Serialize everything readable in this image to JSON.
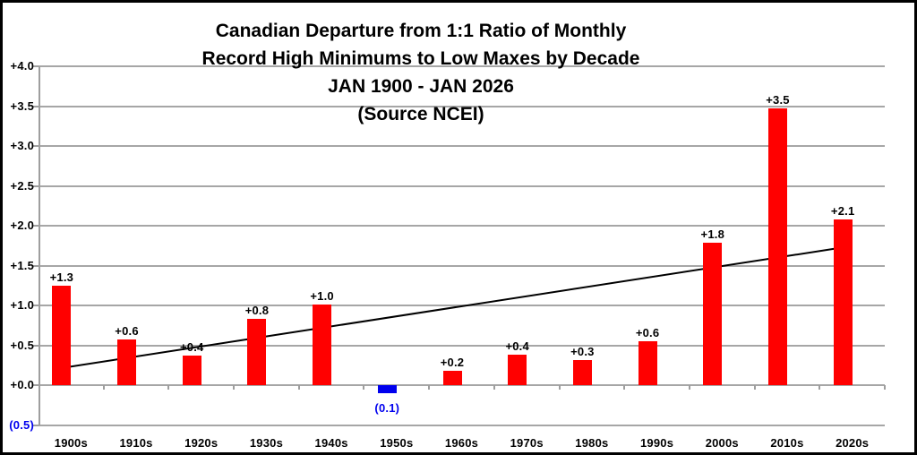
{
  "chart_data": {
    "type": "bar",
    "title_lines": [
      "Canadian Departure from 1:1 Ratio of Monthly",
      "Record High Minimums to Low Maxes by Decade",
      "JAN 1900 - JAN 2026",
      "(Source NCEI)"
    ],
    "categories": [
      "1900s",
      "1910s",
      "1920s",
      "1930s",
      "1940s",
      "1950s",
      "1960s",
      "1970s",
      "1980s",
      "1990s",
      "2000s",
      "2010s",
      "2020s"
    ],
    "values": [
      1.3,
      0.6,
      0.4,
      0.8,
      1.0,
      -0.1,
      0.2,
      0.4,
      0.3,
      0.6,
      1.8,
      3.5,
      2.1
    ],
    "bar_values": [
      1.25,
      0.58,
      0.38,
      0.84,
      1.01,
      -0.1,
      0.18,
      0.39,
      0.32,
      0.56,
      1.79,
      3.47,
      2.08
    ],
    "bar_labels": [
      "+1.3",
      "+0.6",
      "+0.4",
      "+0.8",
      "+1.0",
      "(0.1)",
      "+0.2",
      "+0.4",
      "+0.3",
      "+0.6",
      "+1.8",
      "+3.5",
      "+2.1"
    ],
    "y_tick_labels": [
      "+4.0",
      "+3.5",
      "+3.0",
      "+2.5",
      "+2.0",
      "+1.5",
      "+1.0",
      "+0.5",
      "+0.0",
      "(0.5)"
    ],
    "y_tick_values": [
      4.0,
      3.5,
      3.0,
      2.5,
      2.0,
      1.5,
      1.0,
      0.5,
      0.0,
      -0.5
    ],
    "ylim": [
      -0.5,
      4.0
    ],
    "xlabel": "",
    "ylabel": "",
    "grid": true,
    "legend_position": "none",
    "trendline": {
      "type": "linear",
      "start_value": 0.22,
      "end_value": 1.73
    },
    "colors": {
      "bar_positive": "#FF0000",
      "bar_negative": "#0000EE",
      "negative_text": "#0000EE",
      "label_text": "#000000",
      "gridline": "#A6A6A6",
      "axis_line": "#9E9E9E",
      "trendline": "#000000",
      "frame_border": "#000000",
      "background": "#FFFFFF"
    }
  }
}
